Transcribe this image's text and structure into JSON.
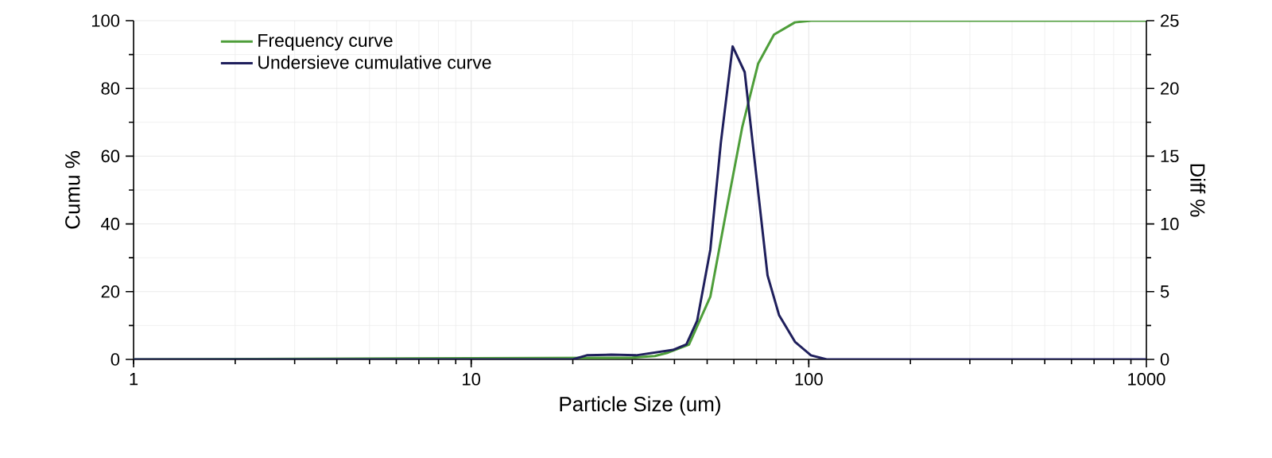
{
  "chart_data": {
    "type": "line",
    "xlabel": "Particle Size (um)",
    "ylabel": "Cumu %",
    "y2label": "Diff %",
    "log": "x",
    "grid": true,
    "legend": "top left",
    "marker": "none",
    "line_style": "solid",
    "xlim": [
      1,
      1000
    ],
    "xticks": [
      1,
      10,
      100,
      1000
    ],
    "ylim": [
      0,
      100
    ],
    "yticks": [
      0,
      20,
      40,
      60,
      80,
      100
    ],
    "y2lim": [
      0,
      25
    ],
    "y2ticks": [
      0,
      5,
      10,
      15,
      20,
      25
    ],
    "series": [
      {
        "name": "Frequency curve",
        "color": "#4e9e3a",
        "x": [
          1,
          30,
          35,
          38.3,
          44.2,
          51.1,
          56.9,
          63.5,
          70.8,
          78.9,
          91,
          101.5,
          1000
        ],
        "values": [
          0,
          0.5,
          1,
          2,
          4.4,
          18.5,
          43.5,
          68.5,
          87.3,
          95.9,
          99.5,
          100,
          100
        ]
      },
      {
        "name": "Undersieve cumulative curve",
        "color": "#1f1f5c",
        "axis": "y2",
        "x": [
          1,
          20,
          22,
          26,
          30.8,
          39.6,
          43.4,
          46.7,
          51.1,
          54.9,
          59.5,
          64.6,
          75.5,
          81.7,
          91,
          101.5,
          113,
          1000
        ],
        "values": [
          0,
          0,
          0.3,
          0.35,
          0.3,
          0.7,
          1.1,
          2.85,
          8.1,
          16,
          23.1,
          21.2,
          6.2,
          3.25,
          1.3,
          0.3,
          0,
          0
        ]
      }
    ]
  }
}
